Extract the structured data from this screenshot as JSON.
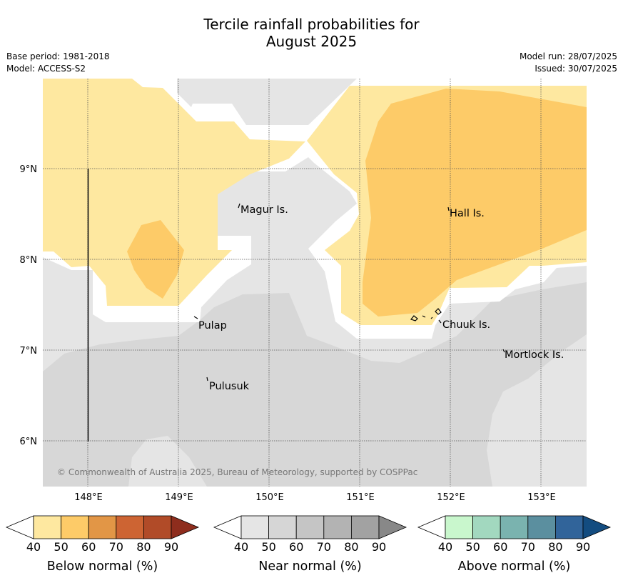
{
  "header": {
    "title_line1": "Tercile rainfall probabilities for",
    "title_line2": "August 2025",
    "base_period": "Base period: 1981-2018",
    "model": "Model: ACCESS-S2",
    "model_run": "Model run: 28/07/2025",
    "issued": "Issued: 30/07/2025"
  },
  "map": {
    "lat_labels": [
      "9°N",
      "8°N",
      "7°N",
      "6°N"
    ],
    "lon_labels": [
      "148°E",
      "149°E",
      "150°E",
      "151°E",
      "152°E",
      "153°E"
    ],
    "places": [
      "Magur Is.",
      "Hall Is.",
      "Pulap",
      "Chuuk Is.",
      "Mortlock Is.",
      "Pulusuk"
    ],
    "copyright": "© Commonwealth of Australia 2025, Bureau of Meteorology, supported by COSPPac",
    "colors": {
      "below_40": "#fee8a0",
      "below_50": "#fdcb68",
      "near_40": "#e5e5e5",
      "near_50": "#d7d7d7"
    }
  },
  "colorbars": [
    {
      "title": "Below normal (%)",
      "ticks": [
        "40",
        "50",
        "60",
        "70",
        "80",
        "90"
      ],
      "colors": [
        "#fee8a0",
        "#fdcb68",
        "#e29646",
        "#cd6433",
        "#b14b28",
        "#8e2d1d"
      ]
    },
    {
      "title": "Near normal (%)",
      "ticks": [
        "40",
        "50",
        "60",
        "70",
        "80",
        "90"
      ],
      "colors": [
        "#e5e5e5",
        "#d6d6d6",
        "#c5c5c5",
        "#b3b3b3",
        "#a2a2a2",
        "#888888"
      ]
    },
    {
      "title": "Above normal (%)",
      "ticks": [
        "40",
        "50",
        "60",
        "70",
        "80",
        "90"
      ],
      "colors": [
        "#c9f7cd",
        "#a2d8bf",
        "#7ab3af",
        "#5b8f9f",
        "#31649a",
        "#134c80"
      ]
    }
  ]
}
